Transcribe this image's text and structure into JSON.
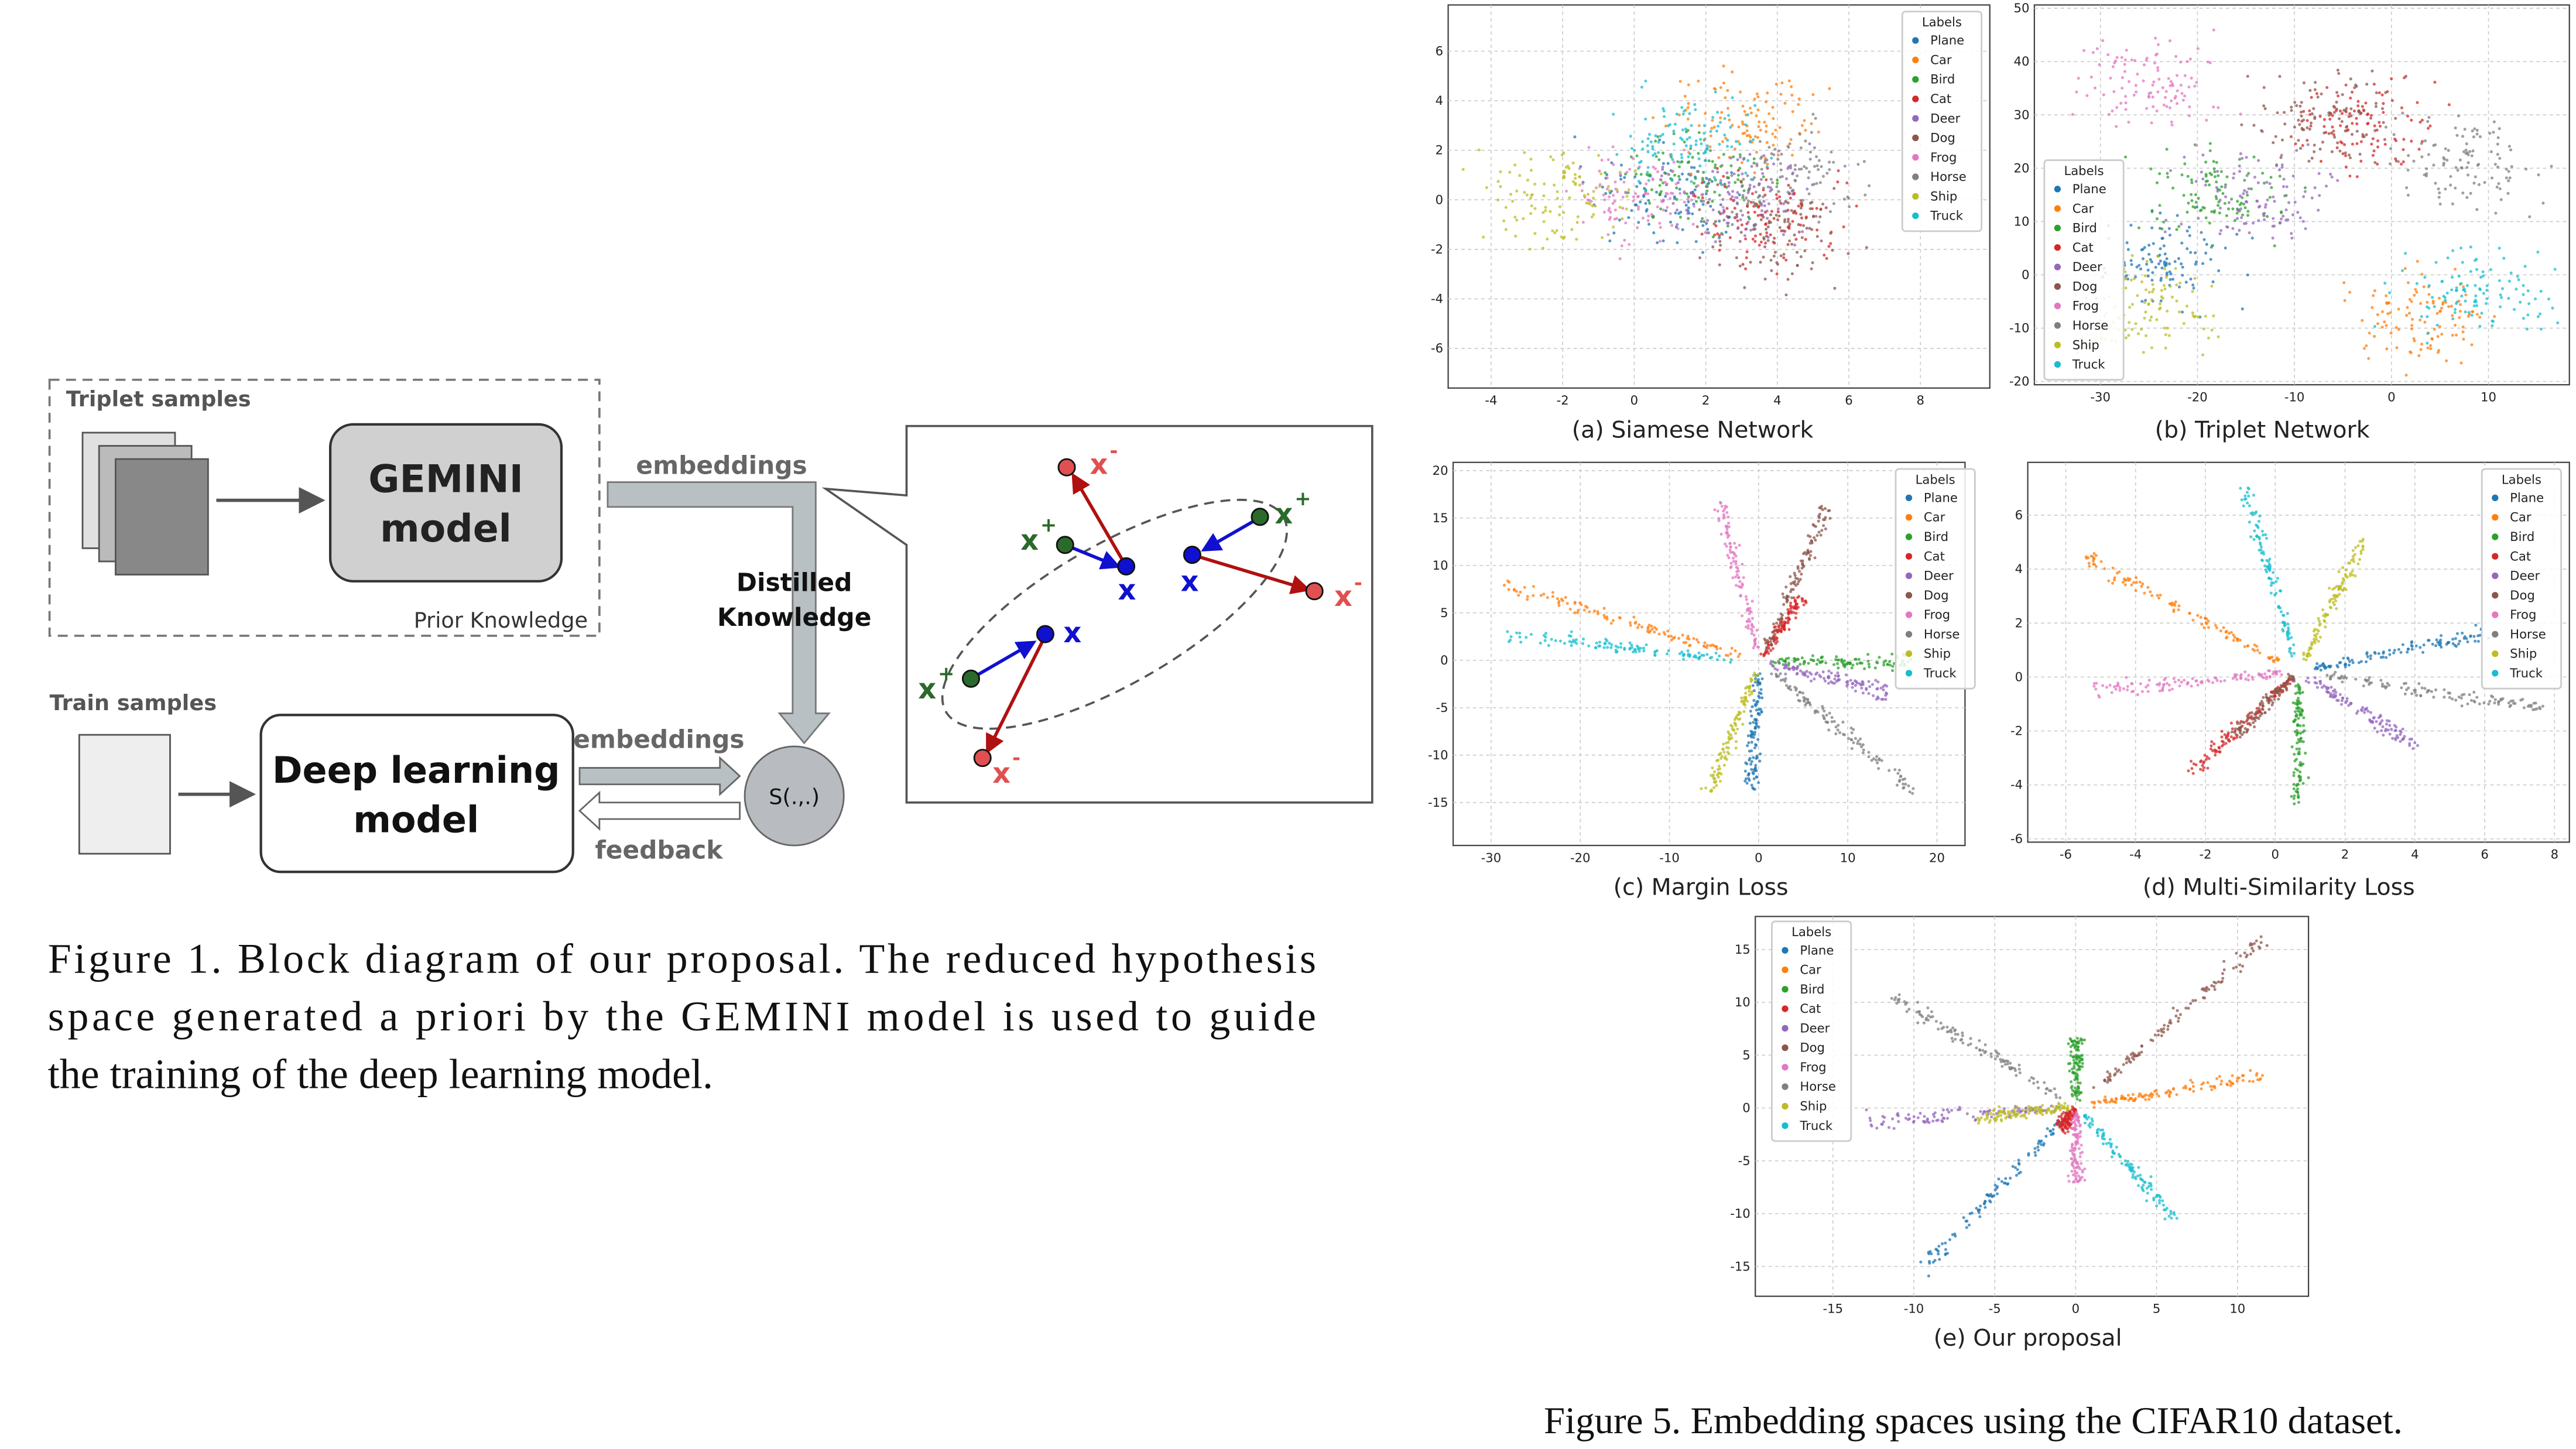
{
  "figure1": {
    "diagram": {
      "triplet_samples": "Triplet samples",
      "gemini_line1": "GEMINI",
      "gemini_line2": "model",
      "prior_knowledge": "Prior Knowledge",
      "embeddings_top": "embeddings",
      "distilled_line1": "Distilled",
      "distilled_line2": "Knowledge",
      "train_samples": "Train samples",
      "dl_line1": "Deep learning",
      "dl_line2": "model",
      "embeddings_bottom": "embeddings",
      "feedback": "feedback",
      "similarity": "S(.,.)",
      "callout": {
        "x": "x",
        "plus": "+",
        "minus": "-"
      }
    },
    "caption": [
      "Figure 1. Block diagram of our proposal. The reduced hypothesis",
      "space generated a priori by the GEMINI model is used to guide",
      "the training of the deep learning model."
    ]
  },
  "figure5": {
    "legend_title": "Labels",
    "legend": [
      {
        "name": "Plane",
        "color": "#1f77b4"
      },
      {
        "name": "Car",
        "color": "#ff7f0e"
      },
      {
        "name": "Bird",
        "color": "#2ca02c"
      },
      {
        "name": "Cat",
        "color": "#d62728"
      },
      {
        "name": "Deer",
        "color": "#9467bd"
      },
      {
        "name": "Dog",
        "color": "#8c564b"
      },
      {
        "name": "Frog",
        "color": "#e377c2"
      },
      {
        "name": "Horse",
        "color": "#7f7f7f"
      },
      {
        "name": "Ship",
        "color": "#bcbd22"
      },
      {
        "name": "Truck",
        "color": "#17becf"
      }
    ],
    "panels": [
      {
        "caption": "(a)  Siamese Network",
        "xticks": [
          -4,
          -2,
          0,
          2,
          4,
          6,
          8
        ],
        "yticks": [
          -6,
          -4,
          -2,
          0,
          2,
          4,
          6
        ]
      },
      {
        "caption": "(b)  Triplet Network",
        "xticks": [
          -30,
          -20,
          -10,
          0,
          10
        ],
        "yticks": [
          -20,
          -10,
          0,
          10,
          20,
          30,
          40,
          50
        ]
      },
      {
        "caption": "(c)  Margin Loss",
        "xticks": [
          -30,
          -20,
          -10,
          0,
          10,
          20
        ],
        "yticks": [
          -15,
          -10,
          -5,
          0,
          5,
          10,
          15,
          20
        ]
      },
      {
        "caption": "(d)  Multi-Similarity Loss",
        "xticks": [
          -6,
          -4,
          -2,
          0,
          2,
          4,
          6,
          8
        ],
        "yticks": [
          -6,
          -4,
          -2,
          0,
          2,
          4,
          6
        ]
      },
      {
        "caption": "(e)  Our proposal",
        "xticks": [
          -15,
          -10,
          -5,
          0,
          5,
          10
        ],
        "yticks": [
          -15,
          -10,
          -5,
          0,
          5,
          10,
          15
        ]
      }
    ],
    "caption": "Figure 5. Embedding spaces using the CIFAR10 dataset."
  }
}
